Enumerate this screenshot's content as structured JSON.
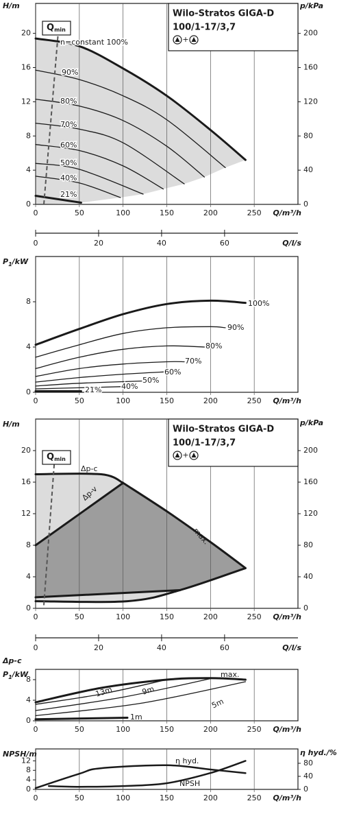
{
  "chart_data": [
    {
      "type": "line",
      "title": "Wilo-Stratos GIGA-D",
      "subtitle": "100/1-17/3,7",
      "symbol_joiner": "+",
      "xlabel": "Q/m³/h",
      "ylabel": [
        "H/m"
      ],
      "y2label": "p/kPa",
      "x2label": "Q/l/s",
      "xlim": [
        0,
        300
      ],
      "xticks": [
        0,
        50,
        100,
        150,
        200,
        250
      ],
      "ylim": [
        0,
        23.5
      ],
      "yticks": [
        0,
        4,
        8,
        12,
        16,
        20
      ],
      "y2lim": [
        0,
        235
      ],
      "y2ticks": [
        0,
        40,
        80,
        120,
        160,
        200
      ],
      "x2lim": [
        0,
        83.3
      ],
      "x2ticks": [
        0,
        20,
        40,
        60
      ],
      "qmin": {
        "label": [
          "Q",
          "min"
        ],
        "x": [
          9.4,
          26
        ],
        "values": [
          0,
          20.3
        ]
      },
      "shading": [
        "#dcdcdc"
      ],
      "line_color": "#1a1a1a",
      "series": [
        {
          "name": "n=constant 100%",
          "linewidth": 3,
          "x": [
            0,
            50,
            100,
            150,
            200,
            240
          ],
          "values": [
            19.4,
            18.5,
            15.9,
            12.7,
            8.7,
            5.2
          ]
        },
        {
          "name": "90%",
          "linewidth": 1.3,
          "x": [
            0,
            50,
            100,
            150,
            217
          ],
          "values": [
            15.7,
            14.6,
            12.7,
            9.9,
            4.3
          ]
        },
        {
          "name": "80%",
          "linewidth": 1.3,
          "x": [
            0,
            50,
            100,
            150,
            193
          ],
          "values": [
            12.3,
            11.5,
            9.8,
            6.8,
            3.2
          ]
        },
        {
          "name": "70%",
          "linewidth": 1.3,
          "x": [
            0,
            50,
            100,
            170
          ],
          "values": [
            9.5,
            8.8,
            7.2,
            2.4
          ]
        },
        {
          "name": "60%",
          "linewidth": 1.3,
          "x": [
            0,
            50,
            100,
            146
          ],
          "values": [
            7.0,
            6.3,
            4.5,
            1.8
          ]
        },
        {
          "name": "50%",
          "linewidth": 1.3,
          "x": [
            0,
            50,
            123
          ],
          "values": [
            4.8,
            4.1,
            1.2
          ]
        },
        {
          "name": "40%",
          "linewidth": 1.3,
          "x": [
            0,
            50,
            97
          ],
          "values": [
            3.3,
            2.5,
            0.8
          ]
        },
        {
          "name": "21%",
          "linewidth": 3,
          "x": [
            0,
            52
          ],
          "values": [
            1.0,
            0.2
          ]
        }
      ]
    },
    {
      "type": "line",
      "xlabel": "Q/m³/h",
      "ylabel": [
        "P",
        "1",
        "/kW"
      ],
      "xlim": [
        0,
        300
      ],
      "xticks": [
        0,
        50,
        100,
        150,
        200,
        250
      ],
      "ylim": [
        0,
        12
      ],
      "yticks": [
        0,
        4,
        8
      ],
      "line_color": "#1a1a1a",
      "series": [
        {
          "name": "100%",
          "linewidth": 3,
          "x": [
            0,
            50,
            100,
            150,
            200,
            240
          ],
          "values": [
            4.2,
            5.6,
            6.9,
            7.8,
            8.1,
            7.9
          ]
        },
        {
          "name": "90%",
          "linewidth": 1.3,
          "x": [
            0,
            50,
            100,
            150,
            200,
            217
          ],
          "values": [
            3.1,
            4.2,
            5.2,
            5.7,
            5.8,
            5.7
          ]
        },
        {
          "name": "80%",
          "linewidth": 1.3,
          "x": [
            0,
            50,
            100,
            150,
            193
          ],
          "values": [
            2.1,
            3.1,
            3.8,
            4.1,
            4.0
          ]
        },
        {
          "name": "70%",
          "linewidth": 1.3,
          "x": [
            0,
            50,
            100,
            150,
            170
          ],
          "values": [
            1.4,
            2.1,
            2.5,
            2.7,
            2.7
          ]
        },
        {
          "name": "60%",
          "linewidth": 1.3,
          "x": [
            0,
            50,
            100,
            146
          ],
          "values": [
            0.9,
            1.3,
            1.6,
            1.8
          ]
        },
        {
          "name": "50%",
          "linewidth": 1.3,
          "x": [
            0,
            50,
            123
          ],
          "values": [
            0.55,
            0.8,
            1.0
          ]
        },
        {
          "name": "40%",
          "linewidth": 1.3,
          "x": [
            0,
            50,
            97
          ],
          "values": [
            0.3,
            0.4,
            0.5
          ]
        },
        {
          "name": "21%",
          "linewidth": 3,
          "x": [
            0,
            52
          ],
          "values": [
            0.1,
            0.1
          ]
        }
      ]
    },
    {
      "type": "line",
      "title": "Wilo-Stratos GIGA-D",
      "subtitle": "100/1-17/3,7",
      "symbol_joiner": "+",
      "xlabel": "Q/m³/h",
      "ylabel": [
        "H/m"
      ],
      "y2label": "p/kPa",
      "x2label": "Q/l/s",
      "xlim": [
        0,
        300
      ],
      "xticks": [
        0,
        50,
        100,
        150,
        200,
        250
      ],
      "ylim": [
        0,
        24
      ],
      "yticks": [
        0,
        4,
        8,
        12,
        16,
        20
      ],
      "y2lim": [
        0,
        240
      ],
      "y2ticks": [
        0,
        40,
        80,
        120,
        160,
        200
      ],
      "x2lim": [
        0,
        83.3
      ],
      "x2ticks": [
        0,
        20,
        40,
        60
      ],
      "qmin": {
        "label": [
          "Q",
          "min"
        ],
        "x": [
          9.4,
          22
        ],
        "values": [
          0.4,
          19.4
        ]
      },
      "shading": [
        "#dcdcdc",
        "#9d9d9d"
      ],
      "line_color": "#1a1a1a",
      "series": [
        {
          "name": "Δp-c",
          "linewidth": 3,
          "x": [
            0,
            75,
            100
          ],
          "values": [
            17,
            17,
            15.9
          ]
        },
        {
          "name": "Δp-v",
          "linewidth": 3,
          "x": [
            0,
            100
          ],
          "values": [
            8,
            15.9
          ]
        },
        {
          "name": "max.",
          "linewidth": 3,
          "x": [
            100,
            150,
            200,
            240
          ],
          "values": [
            15.9,
            12.3,
            8.4,
            5.1
          ]
        },
        {
          "linewidth": 3,
          "x": [
            0,
            105,
            165,
            240
          ],
          "values": [
            0.9,
            0.9,
            2.3,
            5.1
          ]
        },
        {
          "linewidth": 3,
          "x": [
            0,
            165
          ],
          "values": [
            1.4,
            2.3
          ]
        }
      ]
    },
    {
      "type": "line",
      "mode_label": "Δp-c",
      "xlabel": "Q/m³/h",
      "ylabel": [
        "P",
        "1",
        "/kW"
      ],
      "xlim": [
        0,
        300
      ],
      "xticks": [
        0,
        50,
        100,
        150,
        200,
        250
      ],
      "ylim": [
        0,
        10
      ],
      "yticks": [
        0,
        4,
        8
      ],
      "line_color": "#1a1a1a",
      "series": [
        {
          "name": "max.",
          "linewidth": 3,
          "x": [
            0,
            75,
            150,
            200,
            240
          ],
          "values": [
            3.6,
            6.4,
            8.0,
            8.3,
            8.0
          ]
        },
        {
          "name": "13m",
          "linewidth": 1.3,
          "x": [
            0,
            75,
            150
          ],
          "values": [
            3.2,
            5.2,
            8.0
          ]
        },
        {
          "name": "9m",
          "linewidth": 1.3,
          "x": [
            0,
            100,
            200
          ],
          "values": [
            2.0,
            4.6,
            8.2
          ]
        },
        {
          "name": "5m",
          "linewidth": 1.3,
          "x": [
            0,
            120,
            240
          ],
          "values": [
            1.0,
            3.4,
            7.6
          ]
        },
        {
          "name": "1m",
          "linewidth": 3,
          "x": [
            0,
            105
          ],
          "values": [
            0.3,
            0.6
          ]
        }
      ]
    },
    {
      "type": "line",
      "xlabel": "Q/m³/h",
      "ylabel": [
        "NPSH/m"
      ],
      "y2label": "η hyd./%",
      "xlim": [
        0,
        300
      ],
      "xticks": [
        0,
        50,
        100,
        150,
        200,
        250
      ],
      "ylim": [
        0,
        17
      ],
      "yticks": [
        0,
        4,
        8,
        12
      ],
      "y2lim": [
        0,
        124
      ],
      "y2ticks": [
        0,
        40,
        80
      ],
      "line_color": "#1a1a1a",
      "series": [
        {
          "name": "η hyd.",
          "axis": "y2",
          "linewidth": 2.5,
          "x": [
            0,
            50,
            75,
            150,
            200,
            240
          ],
          "values": [
            4,
            48,
            65,
            74,
            61,
            50
          ]
        },
        {
          "name": "NPSH",
          "linewidth": 2.5,
          "x": [
            15,
            50,
            100,
            150,
            200,
            240
          ],
          "values": [
            1.4,
            1.1,
            1.4,
            2.6,
            6.9,
            12
          ]
        }
      ]
    }
  ]
}
